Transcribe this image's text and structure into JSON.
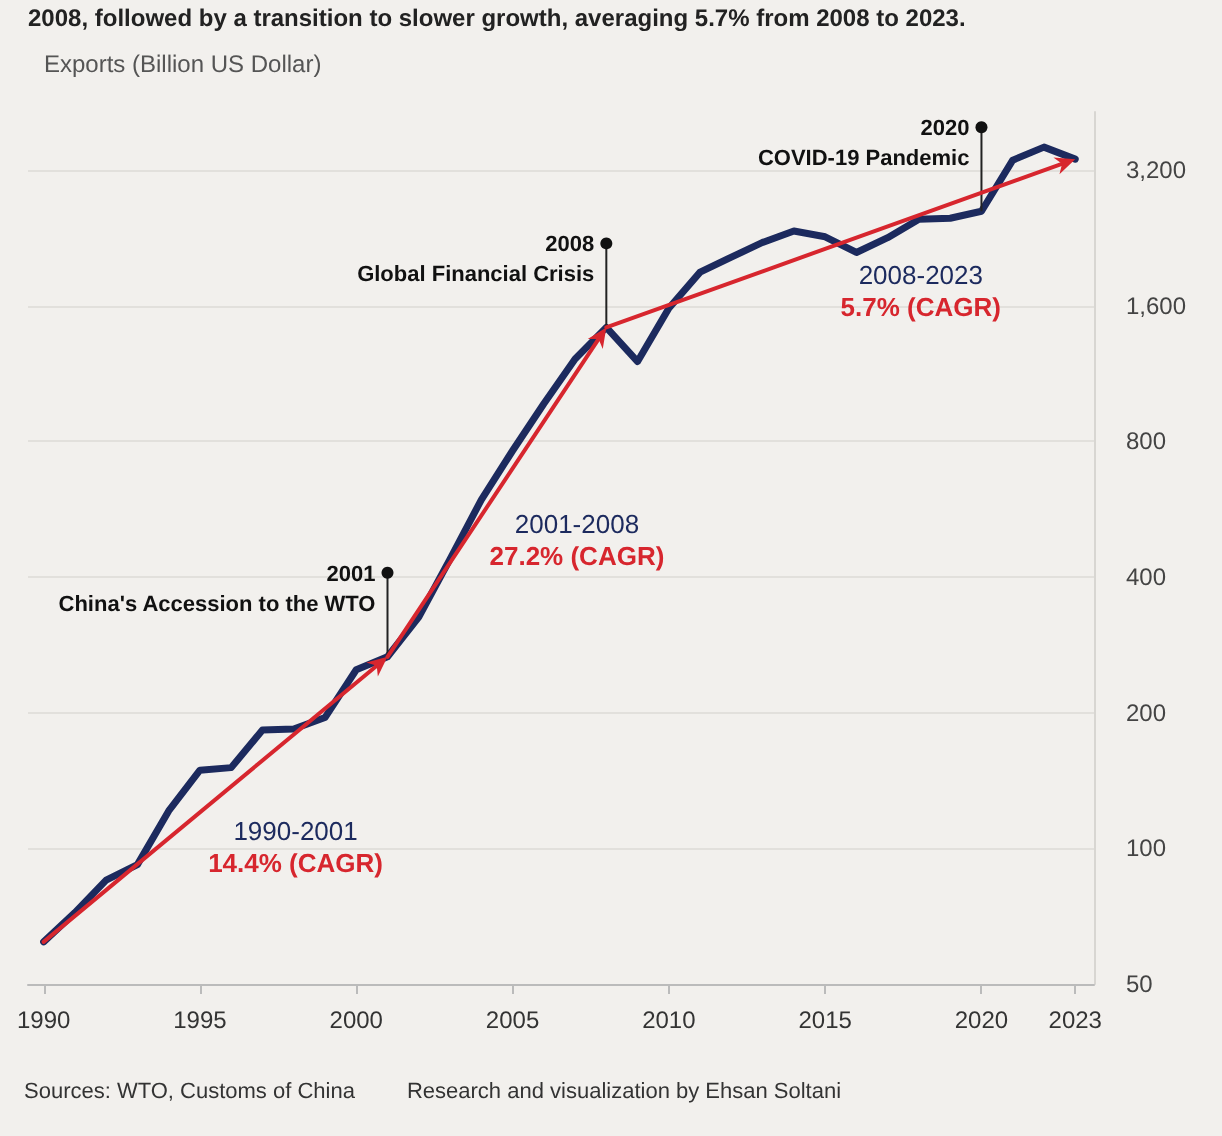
{
  "chart_data": {
    "type": "line",
    "subtitle": "2008, followed by a transition to slower growth, averaging 5.7% from 2008 to 2023.",
    "ylabel": "Exports (Billion US Dollar)",
    "x": [
      1990,
      1991,
      1992,
      1993,
      1994,
      1995,
      1996,
      1997,
      1998,
      1999,
      2000,
      2001,
      2002,
      2003,
      2004,
      2005,
      2006,
      2007,
      2008,
      2009,
      2010,
      2011,
      2012,
      2013,
      2014,
      2015,
      2016,
      2017,
      2018,
      2019,
      2020,
      2021,
      2022,
      2023
    ],
    "series": [
      {
        "color": "#1c2a5e",
        "values": [
          62,
          72,
          85,
          92,
          121,
          149,
          151,
          183,
          184,
          195,
          249,
          266,
          326,
          438,
          593,
          762,
          969,
          1218,
          1431,
          1202,
          1578,
          1898,
          2049,
          2209,
          2342,
          2273,
          2098,
          2263,
          2487,
          2499,
          2590,
          3362,
          3594,
          3380
        ]
      }
    ],
    "log": "y",
    "xlim": [
      1989.5,
      2023.6
    ],
    "xticks": [
      1990,
      1995,
      2000,
      2005,
      2010,
      2015,
      2020,
      2023
    ],
    "ylim": [
      50,
      4300
    ],
    "yticks": [
      50,
      100,
      200,
      400,
      800,
      {
        "value": 1600,
        "label": "1,600"
      },
      {
        "value": 3200,
        "label": "3,200"
      }
    ],
    "grid": "y",
    "marker": "none",
    "line_style": "solid",
    "annotations": [
      "1990-2001\n14.4% (CAGR)",
      "2001-2008\n27.2% (CAGR)",
      "2008-2023\n5.7% (CAGR)",
      {
        "text": "2001\nChina's Accession to the WTO",
        "x": 2001,
        "y": 266
      },
      {
        "text": "2008\nGlobal Financial Crisis",
        "x": 2008,
        "y": 1431
      },
      {
        "text": "2020\nCOVID-19 Pandemic",
        "x": 2020,
        "y": 2590
      },
      "Sources: WTO, Customs of China",
      "Research and visualization by Ehsan Soltani"
    ]
  }
}
